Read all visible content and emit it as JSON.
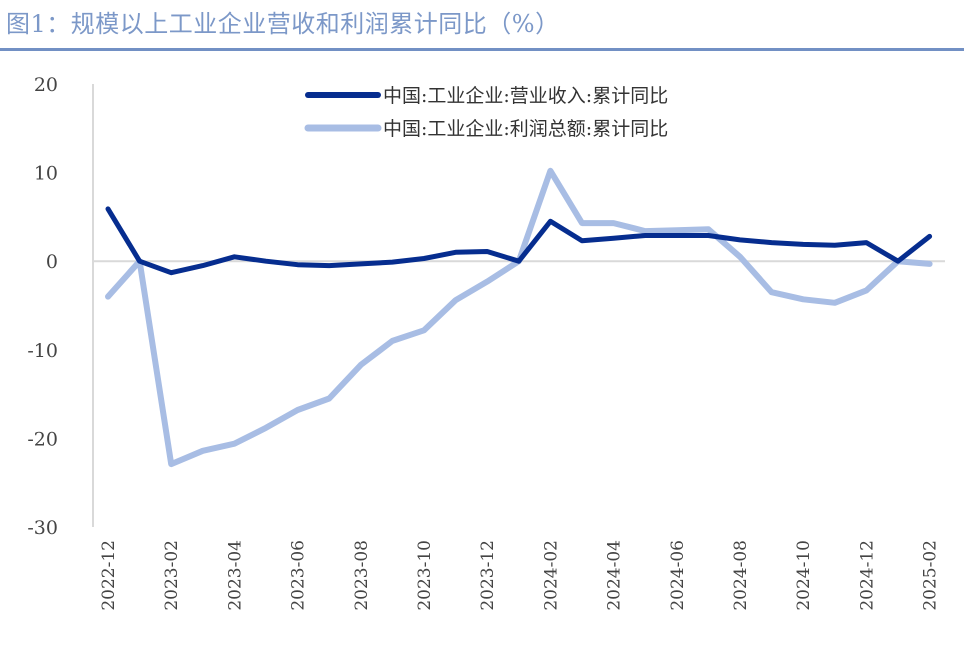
{
  "title": "图1：规模以上工业企业营收和利润累计同比（%）",
  "chart_data": {
    "type": "line",
    "title": "图1：规模以上工业企业营收和利润累计同比（%）",
    "xlabel": "",
    "ylabel": "",
    "ylim": [
      -30,
      20
    ],
    "yticks": [
      20,
      10,
      0,
      -10,
      -20,
      -30
    ],
    "grid": "zero line only",
    "legend_position": "top-right",
    "x": [
      "2022-12",
      "2023-01",
      "2023-02",
      "2023-03",
      "2023-04",
      "2023-05",
      "2023-06",
      "2023-07",
      "2023-08",
      "2023-09",
      "2023-10",
      "2023-11",
      "2023-12",
      "2024-01",
      "2024-02",
      "2024-03",
      "2024-04",
      "2024-05",
      "2024-06",
      "2024-07",
      "2024-08",
      "2024-09",
      "2024-10",
      "2024-11",
      "2024-12",
      "2025-01",
      "2025-02"
    ],
    "xtick_labels": [
      "2022-12",
      "2023-02",
      "2023-04",
      "2023-06",
      "2023-08",
      "2023-10",
      "2023-12",
      "2024-02",
      "2024-04",
      "2024-06",
      "2024-08",
      "2024-10",
      "2024-12",
      "2025-02"
    ],
    "series": [
      {
        "name": "中国:工业企业:营业收入:累计同比",
        "color": "#062d8f",
        "values": [
          5.9,
          0,
          -1.3,
          -0.5,
          0.5,
          0,
          -0.4,
          -0.5,
          -0.3,
          -0.1,
          0.3,
          1.0,
          1.1,
          0,
          4.5,
          2.3,
          2.6,
          2.9,
          2.9,
          2.9,
          2.4,
          2.1,
          1.9,
          1.8,
          2.1,
          0,
          2.8
        ]
      },
      {
        "name": "中国:工业企业:利润总额:累计同比",
        "color": "#a8bde4",
        "values": [
          -4.0,
          0,
          -22.9,
          -21.4,
          -20.6,
          -18.8,
          -16.8,
          -15.5,
          -11.7,
          -9.0,
          -7.8,
          -4.4,
          -2.3,
          0,
          10.2,
          4.3,
          4.3,
          3.4,
          3.5,
          3.6,
          0.5,
          -3.5,
          -4.3,
          -4.7,
          -3.3,
          0,
          -0.3
        ]
      }
    ]
  }
}
